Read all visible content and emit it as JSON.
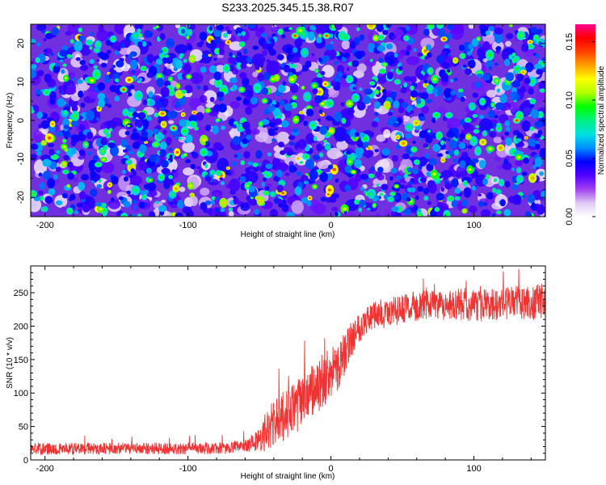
{
  "title": "S233.2025.345.15.38.R07",
  "chart_data": [
    {
      "type": "heatmap",
      "title": "S233.2025.345.15.38.R07",
      "xlabel": "Height of straight line (km)",
      "ylabel": "Frequency (Hz)",
      "xlim": [
        -210,
        150
      ],
      "ylim": [
        -25,
        25
      ],
      "xticks": [
        -200,
        -100,
        0,
        100
      ],
      "xtick_labels": [
        "-200",
        "-100",
        "0",
        "100"
      ],
      "yticks": [
        -20,
        -10,
        0,
        10,
        20
      ],
      "ytick_labels": [
        "-20",
        "-10",
        "0",
        "10",
        "20"
      ],
      "colorbar": {
        "label": "Normalized spectral amplitude",
        "range": [
          0.0,
          0.165
        ],
        "ticks": [
          0.0,
          0.05,
          0.1,
          0.15
        ],
        "tick_labels": [
          "0.00",
          "0.05",
          "0.10",
          "0.15"
        ],
        "colormap": [
          "#ffffff",
          "#e0c8f4",
          "#a040f0",
          "#5000ff",
          "#0000ff",
          "#0090ff",
          "#00e0e0",
          "#00f080",
          "#00ff00",
          "#b0ff00",
          "#ffff00",
          "#ffa000",
          "#ff4000",
          "#ff0000",
          "#ff0090"
        ]
      },
      "description_values": "speckled field, mostly 0.02-0.06, sparse peaks up to ~0.12"
    },
    {
      "type": "line",
      "xlabel": "Height of straight line (km)",
      "ylabel": "SNR (10 * v/v)",
      "xlim": [
        -210,
        150
      ],
      "ylim": [
        0,
        290
      ],
      "xticks": [
        -200,
        -100,
        0,
        100
      ],
      "xtick_labels": [
        "-200",
        "-100",
        "0",
        "100"
      ],
      "yticks": [
        0,
        50,
        100,
        150,
        200,
        250
      ],
      "ytick_labels": [
        "0",
        "50",
        "100",
        "150",
        "200",
        "250"
      ],
      "series": [
        {
          "name": "SNR",
          "color": "#ee3333",
          "x": [
            -210,
            -180,
            -150,
            -120,
            -90,
            -70,
            -60,
            -50,
            -45,
            -40,
            -35,
            -30,
            -25,
            -20,
            -15,
            -10,
            -5,
            0,
            5,
            10,
            15,
            20,
            25,
            30,
            40,
            50,
            60,
            70,
            80,
            90,
            100,
            110,
            120,
            130,
            140,
            150
          ],
          "mean": [
            17,
            17,
            17,
            17,
            17,
            18,
            22,
            30,
            42,
            55,
            62,
            70,
            78,
            88,
            98,
            108,
            118,
            128,
            140,
            160,
            185,
            200,
            210,
            215,
            220,
            225,
            230,
            232,
            230,
            233,
            230,
            232,
            233,
            235,
            236,
            238
          ],
          "noise": [
            9,
            9,
            9,
            9,
            9,
            9,
            10,
            18,
            30,
            38,
            38,
            38,
            40,
            40,
            40,
            42,
            42,
            40,
            36,
            32,
            28,
            24,
            22,
            22,
            22,
            22,
            22,
            22,
            22,
            24,
            24,
            24,
            24,
            26,
            26,
            26
          ]
        }
      ]
    }
  ]
}
